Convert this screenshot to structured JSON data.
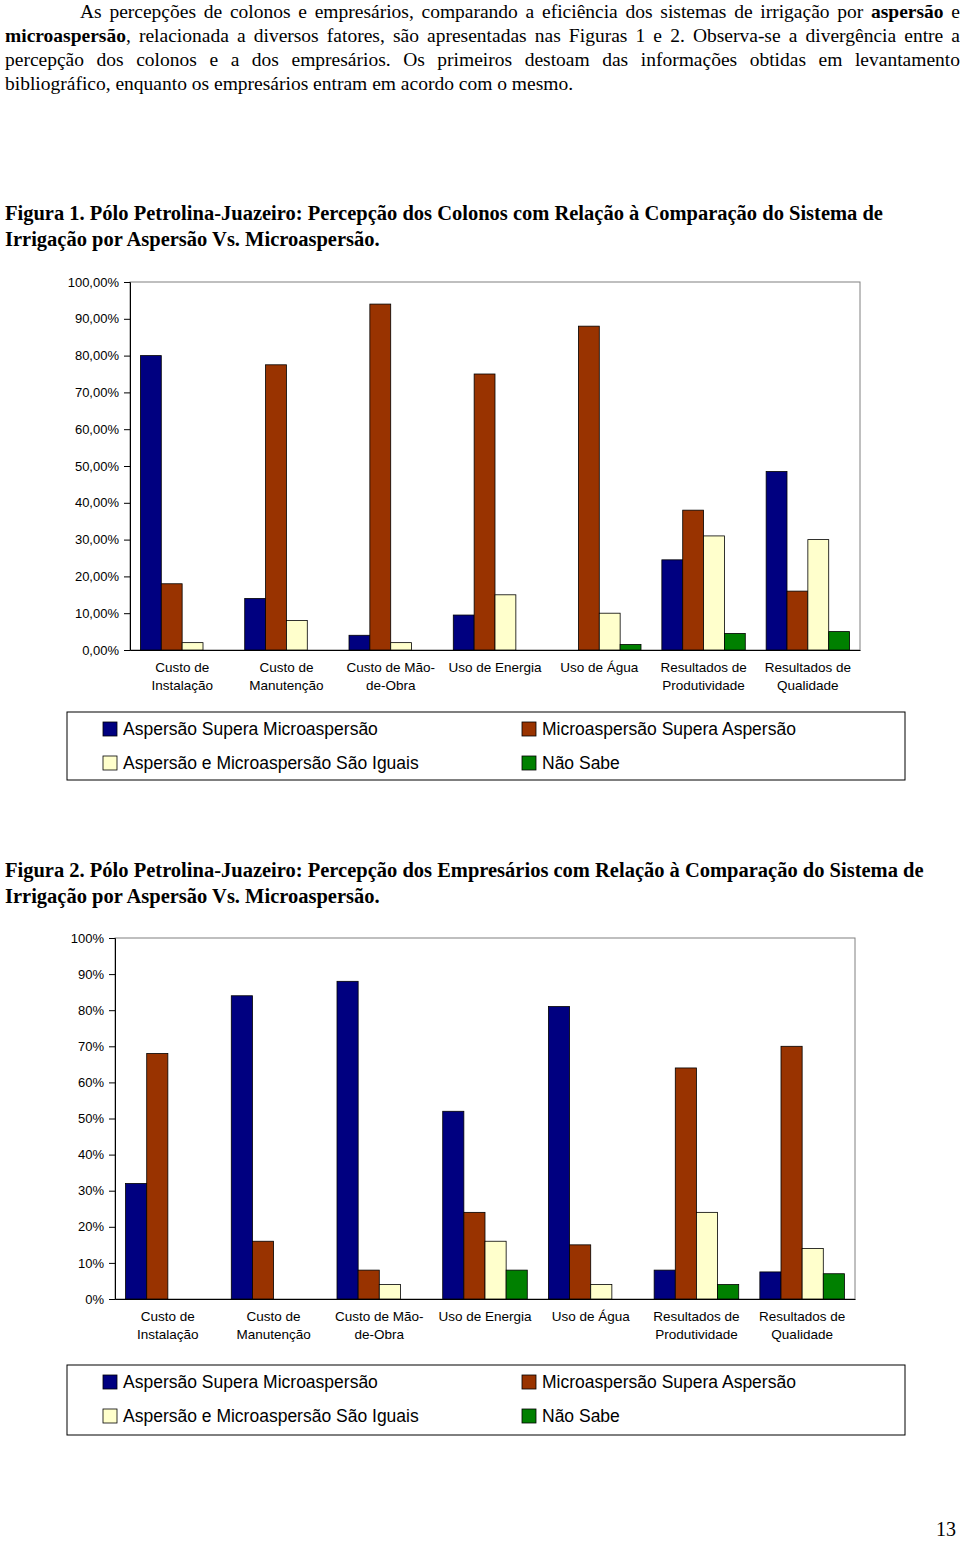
{
  "paragraph": [
    {
      "text": "As percepções de colonos e empresários, comparando a eficiência dos sistemas de irrigação por ",
      "bold": false
    },
    {
      "text": "aspersão",
      "bold": true
    },
    {
      "text": " e ",
      "bold": false
    },
    {
      "text": "microaspersão",
      "bold": true
    },
    {
      "text": ", relacionada a diversos fatores, são apresentadas nas Figuras 1 e 2. Observa-se a divergência entre a percepção dos colonos e a dos empresários. Os primeiros destoam das informações obtidas em levantamento bibliográfico, enquanto os empresários entram em acordo com o mesmo.",
      "bold": false
    }
  ],
  "page_number": "13",
  "chart_data": [
    {
      "type": "bar",
      "title": "Figura 1. Pólo Petrolina-Juazeiro: Percepção dos Colonos com Relação à Comparação do Sistema de Irrigação por Aspersão Vs. Microaspersão.",
      "categories": [
        "Custo de Instalação",
        "Custo de Manutenção",
        "Custo de Mão-de-Obra",
        "Uso de Energia",
        "Uso de Água",
        "Resultados de Produtividade",
        "Resultados de Qualidade"
      ],
      "series": [
        {
          "name": "Aspersão Supera Microaspersão",
          "color": "#000080",
          "values": [
            80,
            14,
            4,
            9.5,
            0,
            24.5,
            48.5
          ]
        },
        {
          "name": "Microaspersão Supera Aspersão",
          "color": "#993300",
          "values": [
            18,
            77.5,
            94,
            75,
            88,
            38,
            16
          ]
        },
        {
          "name": "Aspersão e Microaspersão São Iguais",
          "color": "#FFFFCC",
          "values": [
            2,
            8,
            2,
            15,
            10,
            31,
            30
          ]
        },
        {
          "name": "Não Sabe",
          "color": "#008000",
          "values": [
            0,
            0,
            0,
            0,
            1.5,
            4.5,
            5
          ]
        }
      ],
      "ylim": [
        0,
        100
      ],
      "yticks": [
        {
          "value": 0,
          "label": "0,00%"
        },
        {
          "value": 10,
          "label": "10,00%"
        },
        {
          "value": 20,
          "label": "20,00%"
        },
        {
          "value": 30,
          "label": "30,00%"
        },
        {
          "value": 40,
          "label": "40,00%"
        },
        {
          "value": 50,
          "label": "50,00%"
        },
        {
          "value": 60,
          "label": "60,00%"
        },
        {
          "value": 70,
          "label": "70,00%"
        },
        {
          "value": 80,
          "label": "80,00%"
        },
        {
          "value": 90,
          "label": "90,00%"
        },
        {
          "value": 100,
          "label": "100,00%"
        }
      ],
      "grid": false,
      "legend": "bottom"
    },
    {
      "type": "bar",
      "title": "Figura 2. Pólo Petrolina-Juazeiro: Percepção dos Empresários com Relação à Comparação do Sistema de Irrigação por Aspersão Vs. Microaspersão.",
      "categories": [
        "Custo de Instalação",
        "Custo de Manutenção",
        "Custo de Mão-de-Obra",
        "Uso de Energia",
        "Uso de Água",
        "Resultados de Produtividade",
        "Resultados de Qualidade"
      ],
      "series": [
        {
          "name": "Aspersão Supera Microaspersão",
          "color": "#000080",
          "values": [
            32,
            84,
            88,
            52,
            81,
            8,
            7.5
          ]
        },
        {
          "name": "Microaspersão Supera Aspersão",
          "color": "#993300",
          "values": [
            68,
            16,
            8,
            24,
            15,
            64,
            70
          ]
        },
        {
          "name": "Aspersão e Microaspersão São Iguais",
          "color": "#FFFFCC",
          "values": [
            0,
            0,
            4,
            16,
            4,
            24,
            14
          ]
        },
        {
          "name": "Não Sabe",
          "color": "#008000",
          "values": [
            0,
            0,
            0,
            8,
            0,
            4,
            7
          ]
        }
      ],
      "ylim": [
        0,
        100
      ],
      "yticks": [
        {
          "value": 0,
          "label": "0%"
        },
        {
          "value": 10,
          "label": "10%"
        },
        {
          "value": 20,
          "label": "20%"
        },
        {
          "value": 30,
          "label": "30%"
        },
        {
          "value": 40,
          "label": "40%"
        },
        {
          "value": 50,
          "label": "50%"
        },
        {
          "value": 60,
          "label": "60%"
        },
        {
          "value": 70,
          "label": "70%"
        },
        {
          "value": 80,
          "label": "80%"
        },
        {
          "value": 90,
          "label": "90%"
        },
        {
          "value": 100,
          "label": "100%"
        }
      ],
      "grid": false,
      "legend": "bottom"
    }
  ]
}
